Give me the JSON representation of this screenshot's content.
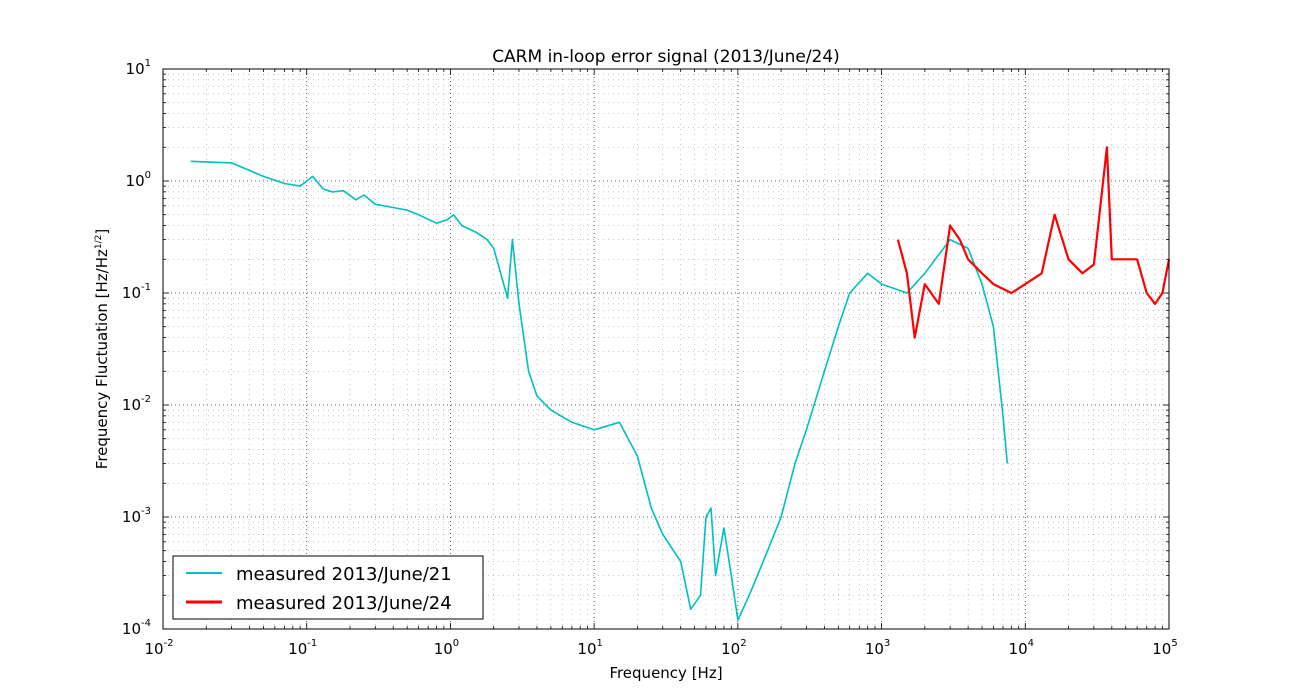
{
  "chart_data": {
    "type": "line",
    "title": "CARM in-loop error signal (2013/June/24)",
    "xlabel": "Frequency [Hz]",
    "ylabel": "Frequency Fluctuation [Hz/Hz",
    "ylabel_sup": "1/2",
    "ylabel_end": "]",
    "xscale": "log",
    "yscale": "log",
    "xlim": [
      0.01,
      100000
    ],
    "ylim": [
      0.0001,
      10
    ],
    "grid": true,
    "legend_position": "bottom-left",
    "x_ticks": [
      {
        "base": "10",
        "exp": "-2"
      },
      {
        "base": "10",
        "exp": "-1"
      },
      {
        "base": "10",
        "exp": "0"
      },
      {
        "base": "10",
        "exp": "1"
      },
      {
        "base": "10",
        "exp": "2"
      },
      {
        "base": "10",
        "exp": "3"
      },
      {
        "base": "10",
        "exp": "4"
      },
      {
        "base": "10",
        "exp": "5"
      }
    ],
    "y_ticks": [
      {
        "base": "10",
        "exp": "-4"
      },
      {
        "base": "10",
        "exp": "-3"
      },
      {
        "base": "10",
        "exp": "-2"
      },
      {
        "base": "10",
        "exp": "-1"
      },
      {
        "base": "10",
        "exp": "0"
      },
      {
        "base": "10",
        "exp": "1"
      }
    ],
    "series": [
      {
        "name": "measured 2013/June/21",
        "color": "#00bfbf",
        "x": [
          0.0156,
          0.03,
          0.05,
          0.07,
          0.09,
          0.11,
          0.13,
          0.15,
          0.18,
          0.22,
          0.25,
          0.3,
          0.4,
          0.5,
          0.6,
          0.8,
          0.95,
          1.05,
          1.2,
          1.5,
          1.8,
          2.0,
          2.5,
          2.7,
          3.0,
          3.5,
          4.0,
          5.0,
          7.0,
          10,
          15,
          20,
          25,
          30,
          40,
          47,
          55,
          60,
          65,
          70,
          80,
          90,
          100,
          120,
          150,
          200,
          250,
          300,
          400,
          500,
          600,
          800,
          1000,
          1500,
          2000,
          3000,
          4000,
          5000,
          6000,
          7000,
          7500
        ],
        "y": [
          1.5,
          1.45,
          1.1,
          0.95,
          0.9,
          1.1,
          0.85,
          0.8,
          0.82,
          0.68,
          0.75,
          0.62,
          0.58,
          0.55,
          0.5,
          0.42,
          0.45,
          0.5,
          0.4,
          0.35,
          0.3,
          0.25,
          0.09,
          0.3,
          0.08,
          0.02,
          0.012,
          0.009,
          0.007,
          0.006,
          0.007,
          0.0035,
          0.0012,
          0.0007,
          0.0004,
          0.00015,
          0.0002,
          0.001,
          0.0012,
          0.0003,
          0.0008,
          0.0003,
          0.00012,
          0.0002,
          0.0004,
          0.001,
          0.003,
          0.006,
          0.02,
          0.05,
          0.1,
          0.15,
          0.12,
          0.1,
          0.15,
          0.3,
          0.25,
          0.12,
          0.05,
          0.008,
          0.003
        ]
      },
      {
        "name": "measured 2013/June/24",
        "color": "#ff0000",
        "x": [
          1300,
          1500,
          1700,
          2000,
          2500,
          3000,
          3500,
          4000,
          5000,
          6000,
          8000,
          10000,
          13000,
          16000,
          20000,
          25000,
          30000,
          37000,
          40000,
          50000,
          60000,
          70000,
          80000,
          90000,
          100000
        ],
        "y": [
          0.3,
          0.15,
          0.04,
          0.12,
          0.08,
          0.4,
          0.3,
          0.2,
          0.15,
          0.12,
          0.1,
          0.12,
          0.15,
          0.5,
          0.2,
          0.15,
          0.18,
          2.0,
          0.2,
          0.2,
          0.2,
          0.1,
          0.08,
          0.1,
          0.2
        ]
      }
    ]
  }
}
